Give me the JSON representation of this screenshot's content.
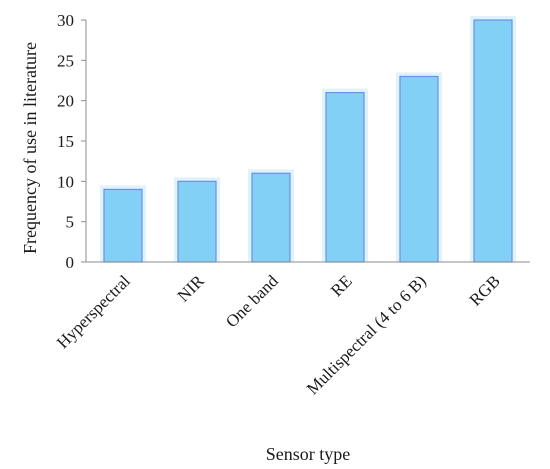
{
  "chart_data": {
    "type": "bar",
    "title": "",
    "xlabel": "Sensor type",
    "ylabel": "Frequency of use in literature",
    "categories": [
      "Hyperspectral",
      "NIR",
      "One band",
      "RE",
      "Multispectral (4 to 6 B)",
      "RGB"
    ],
    "values": [
      9,
      10,
      11,
      21,
      23,
      30
    ],
    "ylim": [
      0,
      30
    ],
    "yticks": [
      0,
      5,
      10,
      15,
      20,
      25,
      30
    ],
    "grid": false,
    "legend": "none",
    "colors": {
      "bar_fill": "#82d0f5",
      "bar_stroke": "#6f8fe0",
      "bar_glow": "#dff3fc",
      "axis": "#8c8c8c",
      "text": "#1a1a1a"
    }
  }
}
